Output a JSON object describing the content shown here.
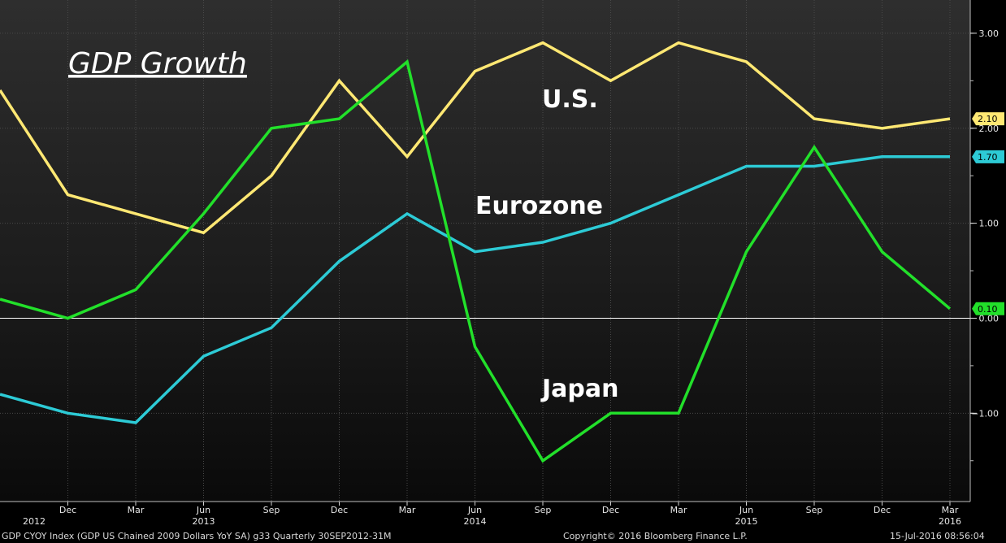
{
  "chart_data": {
    "type": "line",
    "title": "GDP Growth",
    "categories": [
      "Sep 2012",
      "Dec",
      "Mar",
      "Jun",
      "Sep",
      "Dec",
      "Mar",
      "Jun",
      "Sep",
      "Dec",
      "Mar",
      "Jun",
      "Sep",
      "Dec",
      "Mar"
    ],
    "x_tick_labels": [
      "Dec",
      "Mar",
      "Jun",
      "Sep",
      "Dec",
      "Mar",
      "Jun",
      "Sep",
      "Dec",
      "Mar",
      "Jun",
      "Sep",
      "Dec",
      "Mar"
    ],
    "year_labels": [
      {
        "label": "2012",
        "index": 0
      },
      {
        "label": "2013",
        "index": 3
      },
      {
        "label": "2014",
        "index": 7
      },
      {
        "label": "2015",
        "index": 11
      },
      {
        "label": "2016",
        "index": 14
      }
    ],
    "series": [
      {
        "name": "U.S.",
        "color": "#ffe873",
        "last_label": "2.10",
        "values": [
          2.4,
          1.3,
          1.1,
          0.9,
          1.5,
          2.5,
          1.7,
          2.6,
          2.9,
          2.5,
          2.9,
          2.7,
          2.1,
          2.0,
          2.1
        ]
      },
      {
        "name": "Eurozone",
        "color": "#2dcbd6",
        "last_label": "1.70",
        "values": [
          -0.8,
          -1.0,
          -1.1,
          -0.4,
          -0.1,
          0.6,
          1.1,
          0.7,
          0.8,
          1.0,
          1.3,
          1.6,
          1.6,
          1.7,
          1.7
        ]
      },
      {
        "name": "Japan",
        "color": "#22e02a",
        "last_label": "0.10",
        "values": [
          0.2,
          0.0,
          0.3,
          1.1,
          2.0,
          2.1,
          2.7,
          -0.3,
          -1.5,
          -1.0,
          -1.0,
          0.7,
          1.8,
          0.7,
          0.1
        ]
      }
    ],
    "y_ticks": [
      "3.00",
      "2.00",
      "1.00",
      "0.00",
      "-1.00"
    ],
    "ylim": [
      -1.93,
      3.35
    ],
    "zero_line": true
  },
  "annotations": {
    "us": "U.S.",
    "eurozone": "Eurozone",
    "japan": "Japan"
  },
  "footer": {
    "index_info": "GDP CYOY Index (GDP US Chained 2009 Dollars YoY SA) g33  Quarterly 30SEP2012-31M",
    "copyright": "Copyright© 2016 Bloomberg Finance L.P.",
    "timestamp": "15-Jul-2016 08:56:04"
  }
}
